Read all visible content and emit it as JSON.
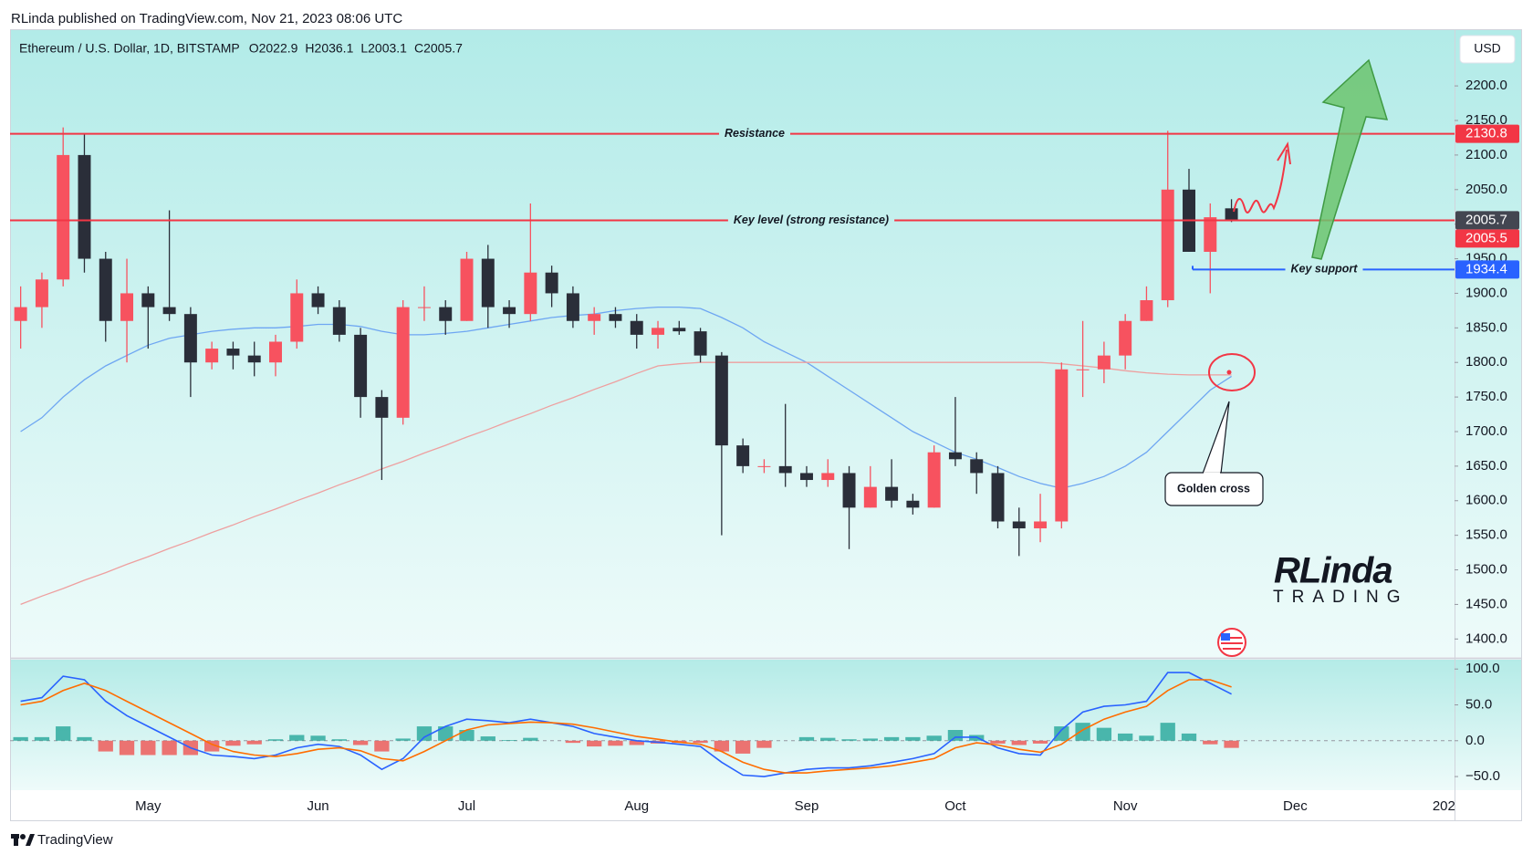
{
  "header": "RLinda published on TradingView.com, Nov 21, 2023 08:06 UTC",
  "footer": "TradingView",
  "currency": "USD",
  "annotations": {
    "golden_cross": "Golden cross",
    "logo_top": "RLinda",
    "logo_bottom": "TRADING"
  },
  "chart_data": [
    {
      "type": "candlestick",
      "title": "Ethereum / U.S. Dollar, 1D, BITSTAMP",
      "ohlc_labels": [
        "O2022.9",
        "H2036.1",
        "L2003.1",
        "C2005.7"
      ],
      "categories": [
        null,
        null,
        null,
        null,
        null,
        null,
        "May",
        null,
        null,
        null,
        null,
        null,
        null,
        null,
        "Jun",
        null,
        null,
        null,
        null,
        null,
        null,
        "Jul",
        null,
        null,
        null,
        null,
        null,
        null,
        null,
        "Aug",
        null,
        null,
        null,
        null,
        null,
        null,
        null,
        "Sep",
        null,
        null,
        null,
        null,
        null,
        null,
        "Oct",
        null,
        null,
        null,
        null,
        null,
        null,
        null,
        "Nov",
        null,
        null,
        null,
        null,
        null,
        null,
        null,
        "Dec",
        null,
        null,
        null,
        null,
        null,
        null,
        "202"
      ],
      "open": [
        1860,
        1880,
        1920,
        2100,
        1950,
        1860,
        1900,
        1880,
        1870,
        1800,
        1820,
        1810,
        1800,
        1830,
        1900,
        1880,
        1840,
        1750,
        1720,
        1880,
        1880,
        1860,
        1950,
        1880,
        1870,
        1930,
        1900,
        1860,
        1870,
        1860,
        1840,
        1850,
        1845,
        1810,
        1680,
        1650,
        1650,
        1640,
        1630,
        1640,
        1590,
        1620,
        1600,
        1590,
        1670,
        1660,
        1640,
        1570,
        1560,
        1570,
        1790,
        1790,
        1810,
        1860,
        1890,
        2050,
        1960,
        2022.9,
        null,
        null,
        null,
        null,
        null,
        null,
        null,
        null,
        null,
        null
      ],
      "high": [
        1910,
        1930,
        2140,
        2130,
        1960,
        1950,
        1910,
        2020,
        1880,
        1830,
        1830,
        1830,
        1840,
        1920,
        1910,
        1890,
        1850,
        1760,
        1890,
        1910,
        1890,
        1960,
        1970,
        1890,
        2030,
        1940,
        1910,
        1880,
        1880,
        1870,
        1860,
        1860,
        1850,
        1815,
        1690,
        1660,
        1740,
        1650,
        1660,
        1650,
        1650,
        1660,
        1610,
        1680,
        1750,
        1670,
        1650,
        1590,
        1610,
        1800,
        1860,
        1830,
        1870,
        1910,
        2135,
        2080,
        2030,
        2036.1,
        null,
        null,
        null,
        null,
        null,
        null,
        null,
        null,
        null,
        null
      ],
      "low": [
        1820,
        1850,
        1910,
        1930,
        1830,
        1800,
        1820,
        1860,
        1750,
        1790,
        1790,
        1780,
        1780,
        1820,
        1870,
        1830,
        1720,
        1630,
        1710,
        1860,
        1840,
        1860,
        1850,
        1850,
        1860,
        1880,
        1850,
        1840,
        1850,
        1820,
        1820,
        1840,
        1800,
        1550,
        1640,
        1640,
        1620,
        1620,
        1620,
        1530,
        1590,
        1590,
        1580,
        1590,
        1650,
        1610,
        1560,
        1520,
        1540,
        1560,
        1750,
        1770,
        1790,
        1860,
        1880,
        1960,
        1900,
        2003.1,
        null,
        null,
        null,
        null,
        null,
        null,
        null,
        null,
        null,
        null
      ],
      "close": [
        1880,
        1920,
        2100,
        1950,
        1860,
        1900,
        1880,
        1870,
        1800,
        1820,
        1810,
        1800,
        1830,
        1900,
        1880,
        1840,
        1750,
        1720,
        1880,
        1880,
        1860,
        1950,
        1880,
        1870,
        1930,
        1900,
        1860,
        1870,
        1860,
        1840,
        1850,
        1845,
        1810,
        1680,
        1650,
        1650,
        1640,
        1630,
        1640,
        1590,
        1620,
        1600,
        1590,
        1670,
        1660,
        1640,
        1570,
        1560,
        1570,
        1790,
        1790,
        1810,
        1860,
        1890,
        2050,
        1960,
        2010,
        2005.7,
        null,
        null,
        null,
        null,
        null,
        null,
        null,
        null,
        null,
        null
      ],
      "up_color": "#f7525f",
      "down_color": "#2a2e39",
      "last_price_color": "#434651",
      "lines": [
        {
          "color": "#6ea6f2",
          "values": [
            1700,
            1720,
            1750,
            1775,
            1795,
            1810,
            1825,
            1835,
            1840,
            1845,
            1848,
            1850,
            1850,
            1852,
            1855,
            1855,
            1852,
            1845,
            1840,
            1840,
            1842,
            1845,
            1850,
            1855,
            1860,
            1865,
            1868,
            1870,
            1875,
            1878,
            1880,
            1880,
            1878,
            1865,
            1850,
            1830,
            1815,
            1800,
            1780,
            1760,
            1740,
            1720,
            1700,
            1685,
            1670,
            1660,
            1648,
            1635,
            1625,
            1618,
            1625,
            1635,
            1650,
            1670,
            1700,
            1730,
            1760,
            1780,
            null,
            null,
            null,
            null,
            null,
            null,
            null,
            null,
            null,
            null
          ]
        },
        {
          "color": "#ee9f9f",
          "values": [
            1450,
            1462,
            1473,
            1485,
            1496,
            1508,
            1519,
            1531,
            1542,
            1554,
            1565,
            1577,
            1588,
            1600,
            1611,
            1623,
            1634,
            1646,
            1657,
            1669,
            1680,
            1692,
            1703,
            1715,
            1726,
            1738,
            1749,
            1761,
            1772,
            1784,
            1795,
            1798,
            1800,
            1800,
            1800,
            1800,
            1800,
            1800,
            1800,
            1800,
            1800,
            1800,
            1800,
            1800,
            1800,
            1800,
            1800,
            1800,
            1800,
            1798,
            1795,
            1792,
            1788,
            1785,
            1783,
            1782,
            1782,
            1782,
            null,
            null,
            null,
            null,
            null,
            null,
            null,
            null,
            null,
            null
          ]
        }
      ],
      "levels": [
        {
          "label": "Resistance",
          "value": 2130.8,
          "color": "#f23645"
        },
        {
          "label": "Key level (strong resistance)",
          "value": 2005.5,
          "color": "#f23645"
        },
        {
          "label": "Key support",
          "value": 1934.4,
          "color": "#2962ff"
        }
      ],
      "ylim": [
        1374,
        2282
      ],
      "yticks": [
        {
          "value": 1400,
          "label": "1400.0"
        },
        {
          "value": 1450,
          "label": "1450.0"
        },
        {
          "value": 1500,
          "label": "1500.0"
        },
        {
          "value": 1550,
          "label": "1550.0"
        },
        {
          "value": 1600,
          "label": "1600.0"
        },
        {
          "value": 1650,
          "label": "1650.0"
        },
        {
          "value": 1700,
          "label": "1700.0"
        },
        {
          "value": 1750,
          "label": "1750.0"
        },
        {
          "value": 1800,
          "label": "1800.0"
        },
        {
          "value": 1850,
          "label": "1850.0"
        },
        {
          "value": 1900,
          "label": "1900.0"
        },
        {
          "value": 1950,
          "label": "1950.0"
        },
        {
          "value": 2000,
          "label": "2000.0"
        },
        {
          "value": 2050,
          "label": "2050.0"
        },
        {
          "value": 2100,
          "label": "2100.0"
        },
        {
          "value": 2150,
          "label": "2150.0"
        },
        {
          "value": 2200,
          "label": "2200.0"
        }
      ]
    },
    {
      "type": "macd",
      "lines": [
        {
          "color": "#2962ff",
          "values": [
            55,
            60,
            90,
            85,
            55,
            35,
            20,
            5,
            -10,
            -20,
            -22,
            -25,
            -20,
            -10,
            -5,
            -8,
            -20,
            -40,
            -25,
            5,
            20,
            30,
            28,
            25,
            30,
            25,
            20,
            10,
            5,
            0,
            -2,
            -5,
            -8,
            -30,
            -48,
            -50,
            -45,
            -40,
            -38,
            -38,
            -35,
            -30,
            -25,
            -18,
            5,
            5,
            -10,
            -18,
            -20,
            15,
            40,
            48,
            50,
            55,
            95,
            95,
            80,
            65,
            null,
            null,
            null,
            null,
            null,
            null,
            null,
            null,
            null,
            null
          ]
        },
        {
          "color": "#ff6d00",
          "values": [
            50,
            55,
            70,
            80,
            70,
            55,
            40,
            25,
            10,
            -5,
            -15,
            -20,
            -22,
            -18,
            -12,
            -10,
            -14,
            -25,
            -28,
            -15,
            0,
            15,
            22,
            24,
            26,
            25,
            23,
            18,
            12,
            6,
            2,
            -2,
            -5,
            -15,
            -30,
            -40,
            -45,
            -45,
            -42,
            -40,
            -38,
            -35,
            -30,
            -25,
            -10,
            -3,
            -6,
            -12,
            -16,
            -5,
            15,
            30,
            40,
            48,
            70,
            85,
            85,
            75,
            null,
            null,
            null,
            null,
            null,
            null,
            null,
            null,
            null,
            null
          ]
        }
      ],
      "histogram": {
        "pos_color": "#26a69a",
        "neg_color": "#ef5350",
        "values": [
          5,
          5,
          20,
          5,
          -15,
          -20,
          -20,
          -20,
          -20,
          -15,
          -7,
          -5,
          2,
          8,
          7,
          2,
          -6,
          -15,
          3,
          20,
          20,
          15,
          6,
          1,
          4,
          0,
          -3,
          -8,
          -7,
          -6,
          -4,
          -3,
          -3,
          -15,
          -18,
          -10,
          0,
          5,
          4,
          2,
          3,
          5,
          5,
          7,
          15,
          8,
          -4,
          -6,
          -4,
          20,
          25,
          18,
          10,
          7,
          25,
          10,
          -5,
          -10,
          null,
          null,
          null,
          null,
          null,
          null,
          null,
          null,
          null,
          null
        ]
      },
      "ylim": [
        -69,
        113
      ],
      "yticks": [
        {
          "value": 100,
          "label": "100.0"
        },
        {
          "value": 50,
          "label": "50.0"
        },
        {
          "value": 0,
          "label": "0.0"
        },
        {
          "value": -50,
          "label": "−50.0"
        }
      ]
    }
  ]
}
